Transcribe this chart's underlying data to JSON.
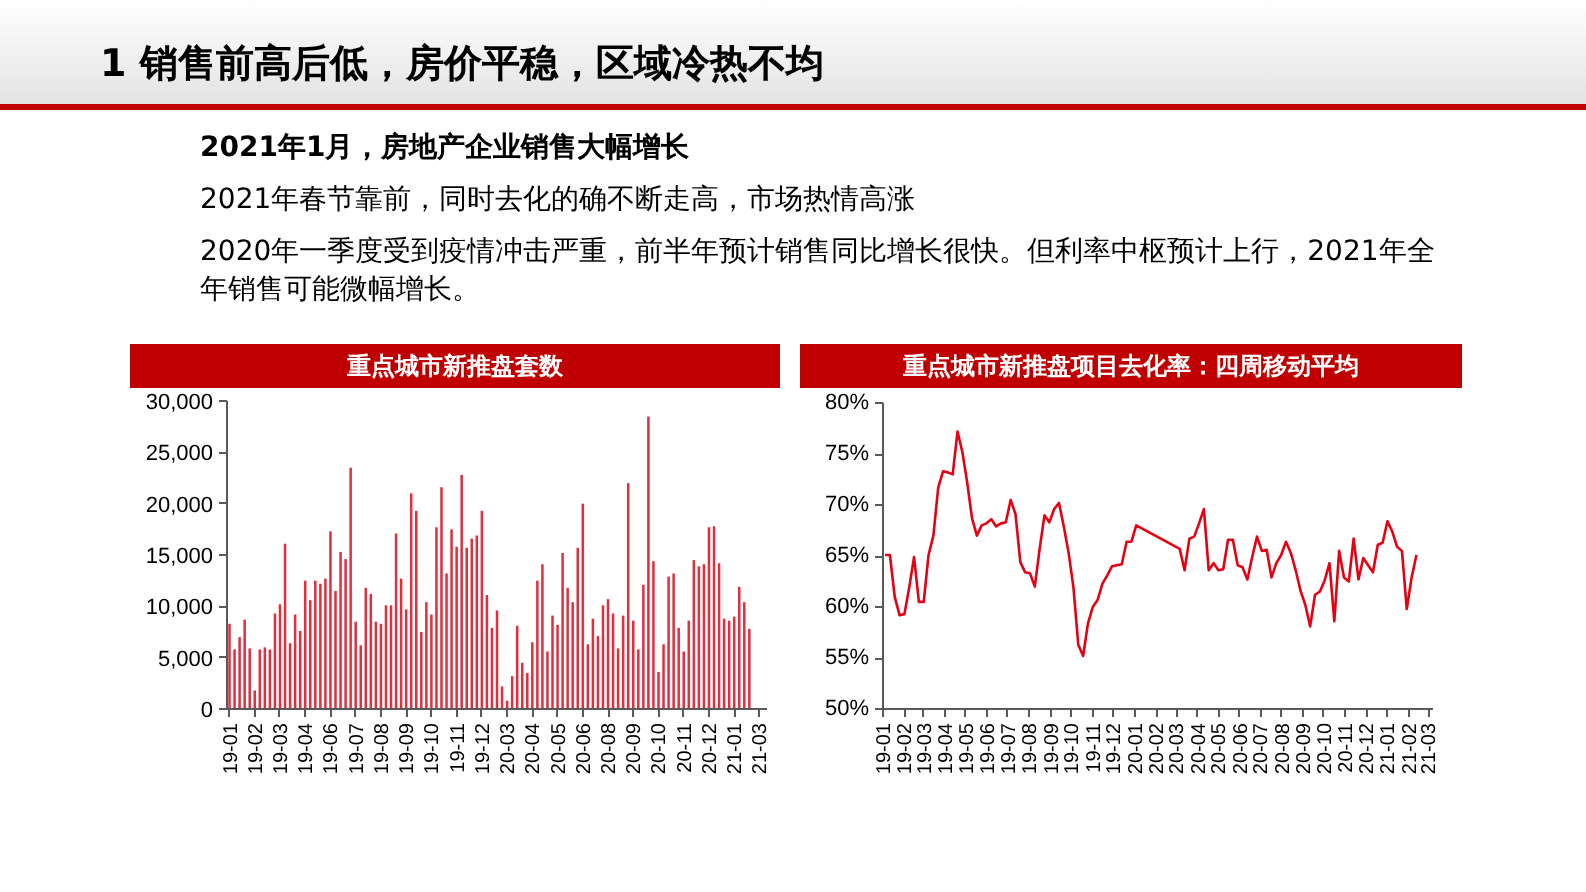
{
  "chart_data": [
    {
      "type": "other",
      "title": "1 销售前高后低，房价平稳，区域冷热不均",
      "annotations": [
        "2021年1月，房地产企业销售大幅增长",
        "2021年春节靠前，同时去化的确不断走高，市场热情高涨",
        "2020年一季度受到疫情冲击严重，前半年预计销售同比增长很快。但利率中枢预计上行，2021年全年销售可能微幅增长。"
      ]
    },
    {
      "type": "bar",
      "title": "重点城市新推盘套数",
      "color": "#e03040",
      "categories": [
        "19-01",
        null,
        null,
        null,
        null,
        "19-02",
        null,
        null,
        null,
        null,
        "19-03",
        null,
        null,
        null,
        null,
        "19-04",
        null,
        null,
        null,
        null,
        "19-06",
        null,
        null,
        null,
        null,
        "19-07",
        null,
        null,
        null,
        null,
        "19-08",
        null,
        null,
        null,
        null,
        "19-09",
        null,
        null,
        null,
        null,
        "19-10",
        null,
        null,
        null,
        null,
        "19-11",
        null,
        null,
        null,
        null,
        "19-12",
        null,
        null,
        null,
        null,
        "20-03",
        null,
        null,
        null,
        null,
        "20-04",
        null,
        null,
        null,
        null,
        "20-05",
        null,
        null,
        null,
        null,
        "20-06",
        null,
        null,
        null,
        null,
        "20-08",
        null,
        null,
        null,
        null,
        "20-09",
        null,
        null,
        null,
        null,
        "20-10",
        null,
        null,
        null,
        null,
        "20-11",
        null,
        null,
        null,
        null,
        "20-12",
        null,
        null,
        null,
        null,
        "21-01",
        null,
        null,
        null,
        null,
        "21-03"
      ],
      "values": [
        8300,
        5800,
        7000,
        8700,
        5900,
        1800,
        5800,
        6000,
        5800,
        9300,
        10200,
        16100,
        6400,
        9200,
        7600,
        12500,
        10600,
        12500,
        12200,
        12700,
        17300,
        11500,
        15300,
        14600,
        23500,
        8500,
        6200,
        11800,
        11200,
        8500,
        8300,
        10100,
        10100,
        17100,
        12700,
        9700,
        21000,
        19300,
        7500,
        10400,
        9200,
        17700,
        21600,
        13200,
        17500,
        15800,
        22800,
        15700,
        16600,
        16900,
        19300,
        11100,
        7900,
        9600,
        2200,
        800,
        3200,
        8100,
        4500,
        3500,
        6500,
        12500,
        14100,
        5600,
        9100,
        8200,
        15200,
        11800,
        10400,
        15700,
        20000,
        6300,
        8800,
        7100,
        10100,
        10700,
        9300,
        5900,
        9100,
        22000,
        8600,
        5800,
        12100,
        28500,
        14400,
        3600,
        6300,
        12900,
        13200,
        7900,
        5600,
        8600,
        14500,
        13900,
        14100,
        17700,
        17800,
        14200,
        8800,
        8600,
        9000,
        11900,
        10400,
        7800,
        null,
        null
      ],
      "ylim": [
        0,
        30000
      ],
      "yticks": [
        0,
        {
          "value": 5000,
          "label": "5,000"
        },
        {
          "value": 10000,
          "label": "10,000"
        },
        {
          "value": 15000,
          "label": "15,000"
        },
        {
          "value": 20000,
          "label": "20,000"
        },
        {
          "value": 25000,
          "label": "25,000"
        },
        {
          "value": 30000,
          "label": "30,000"
        }
      ]
    },
    {
      "type": "line",
      "title": "重点城市新推盘项目去化率：四周移动平均",
      "color": "#e60012",
      "x": [
        "2019-01-04",
        "2019-01-11",
        "2019-01-18",
        "2019-01-25",
        "2019-02-01",
        "2019-02-08",
        "2019-02-15",
        "2019-02-22",
        "2019-03-01",
        "2019-03-08",
        "2019-03-15",
        "2019-03-22",
        "2019-03-29",
        "2019-04-05",
        "2019-04-12",
        "2019-04-19",
        "2019-04-26",
        "2019-05-03",
        "2019-05-10",
        "2019-05-17",
        "2019-05-24",
        "2019-05-31",
        "2019-06-07",
        "2019-06-14",
        "2019-06-21",
        "2019-06-28",
        "2019-07-05",
        "2019-07-12",
        "2019-07-19",
        "2019-07-26",
        "2019-08-02",
        "2019-08-09",
        "2019-08-16",
        "2019-08-23",
        "2019-08-30",
        "2019-09-06",
        "2019-09-13",
        "2019-09-20",
        "2019-09-27",
        "2019-10-04",
        "2019-10-11",
        "2019-10-18",
        "2019-10-25",
        "2019-11-01",
        "2019-11-08",
        "2019-11-15",
        "2019-11-22",
        "2019-11-29",
        "2019-12-06",
        "2019-12-13",
        "2019-12-20",
        "2019-12-27",
        "2020-01-03",
        "2020-03-06",
        "2020-03-13",
        "2020-03-20",
        "2020-03-27",
        "2020-04-03",
        "2020-04-10",
        "2020-04-17",
        "2020-04-24",
        "2020-05-01",
        "2020-05-08",
        "2020-05-15",
        "2020-05-22",
        "2020-05-29",
        "2020-06-05",
        "2020-06-12",
        "2020-06-19",
        "2020-06-26",
        "2020-07-03",
        "2020-07-10",
        "2020-07-17",
        "2020-07-24",
        "2020-07-31",
        "2020-08-07",
        "2020-08-14",
        "2020-08-21",
        "2020-08-28",
        "2020-09-04",
        "2020-09-11",
        "2020-09-18",
        "2020-09-25",
        "2020-10-02",
        "2020-10-09",
        "2020-10-16",
        "2020-10-23",
        "2020-10-30",
        "2020-11-06",
        "2020-11-13",
        "2020-11-20",
        "2020-11-27",
        "2020-12-04",
        "2020-12-11",
        "2020-12-18",
        "2020-12-25",
        "2021-01-01",
        "2021-01-08",
        "2021-01-15",
        "2021-01-22",
        "2021-01-29",
        "2021-02-05",
        "2021-02-12"
      ],
      "values": [
        65.1,
        65.1,
        61.0,
        59.2,
        59.3,
        61.9,
        64.9,
        60.5,
        60.5,
        65.1,
        67.0,
        71.7,
        73.3,
        73.2,
        73.0,
        77.2,
        75.2,
        72.2,
        68.7,
        67.0,
        68.0,
        68.2,
        68.6,
        67.9,
        68.2,
        68.3,
        70.5,
        69.1,
        64.4,
        63.4,
        63.3,
        62.0,
        65.7,
        69.0,
        68.3,
        69.6,
        70.2,
        67.9,
        65.3,
        61.9,
        56.3,
        55.2,
        58.4,
        60.0,
        60.7,
        62.3,
        63.1,
        64.0,
        64.1,
        64.2,
        66.4,
        66.4,
        68.0,
        65.7,
        63.6,
        66.7,
        66.9,
        68.2,
        69.6,
        63.6,
        64.3,
        63.6,
        63.7,
        66.6,
        66.6,
        64.1,
        63.9,
        62.7,
        64.9,
        66.9,
        65.5,
        65.6,
        62.9,
        64.3,
        65.1,
        66.4,
        65.3,
        63.6,
        61.6,
        60.2,
        58.1,
        61.2,
        61.5,
        62.6,
        64.3,
        58.6,
        65.5,
        62.9,
        62.5,
        66.7,
        62.7,
        64.8,
        64.1,
        63.4,
        66.1,
        66.3,
        68.4,
        67.4,
        65.9,
        65.5,
        59.8,
        62.9,
        65.1
      ],
      "xlim": [
        "2019-01-01",
        "2021-03-08"
      ],
      "xticks": [
        {
          "value": "2019-01",
          "label": "19-01"
        },
        {
          "value": "2019-02",
          "label": "19-02"
        },
        {
          "value": "2019-03",
          "label": "19-03"
        },
        {
          "value": "2019-04",
          "label": "19-04"
        },
        {
          "value": "2019-05",
          "label": "19-05"
        },
        {
          "value": "2019-06",
          "label": "19-06"
        },
        {
          "value": "2019-07",
          "label": "19-07"
        },
        {
          "value": "2019-08",
          "label": "19-08"
        },
        {
          "value": "2019-09",
          "label": "19-09"
        },
        {
          "value": "2019-10",
          "label": "19-10"
        },
        {
          "value": "2019-11",
          "label": "19-11"
        },
        {
          "value": "2019-12",
          "label": "19-12"
        },
        {
          "value": "2020-01",
          "label": "20-01"
        },
        {
          "value": "2020-02",
          "label": "20-02"
        },
        {
          "value": "2020-03",
          "label": "20-03"
        },
        {
          "value": "2020-04",
          "label": "20-04"
        },
        {
          "value": "2020-05",
          "label": "20-05"
        },
        {
          "value": "2020-06",
          "label": "20-06"
        },
        {
          "value": "2020-07",
          "label": "20-07"
        },
        {
          "value": "2020-08",
          "label": "20-08"
        },
        {
          "value": "2020-09",
          "label": "20-09"
        },
        {
          "value": "2020-10",
          "label": "20-10"
        },
        {
          "value": "2020-11",
          "label": "20-11"
        },
        {
          "value": "2020-12",
          "label": "20-12"
        },
        {
          "value": "2021-01",
          "label": "21-01"
        },
        {
          "value": "2021-02",
          "label": "21-02"
        },
        {
          "value": "2021-03",
          "label": "21-03"
        }
      ],
      "ylim": [
        50,
        80
      ],
      "yticks": [
        {
          "value": 50,
          "label": "50%"
        },
        {
          "value": 55,
          "label": "55%"
        },
        {
          "value": 60,
          "label": "60%"
        },
        {
          "value": 65,
          "label": "65%"
        },
        {
          "value": 70,
          "label": "70%"
        },
        {
          "value": 75,
          "label": "75%"
        },
        {
          "value": 80,
          "label": "80%"
        }
      ]
    }
  ]
}
